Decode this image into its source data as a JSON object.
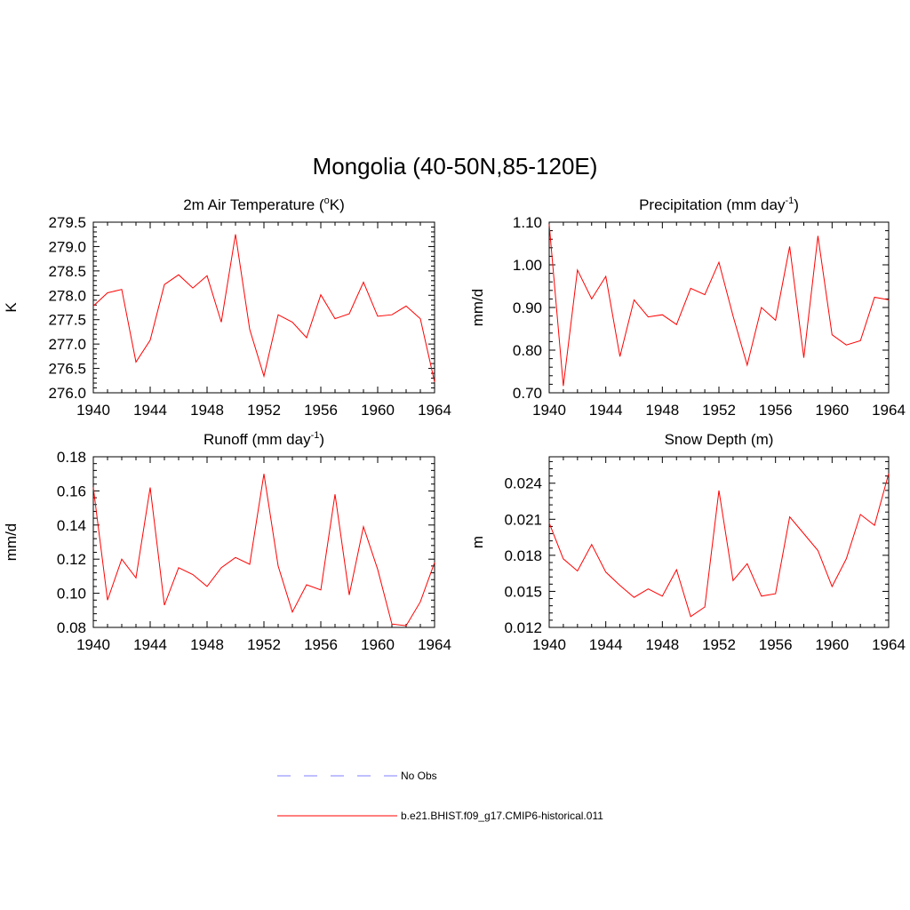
{
  "title": "Mongolia (40-50N,85-120E)",
  "colors": {
    "model": "#ff0000",
    "obs": "#9999ff",
    "axis": "#000000"
  },
  "legend": [
    {
      "label": "No Obs",
      "style": "dashed",
      "color": "#9999ff"
    },
    {
      "label": "b.e21.BHIST.f09_g17.CMIP6-historical.011",
      "style": "solid",
      "color": "#ff0000"
    }
  ],
  "chart_data": [
    {
      "type": "line",
      "title_main": "2m Air Temperature (",
      "title_sup": "o",
      "title_end": "K)",
      "ylabel": "K",
      "xlim": [
        1940,
        1964
      ],
      "ylim": [
        276.0,
        279.5
      ],
      "xticks": [
        "1940",
        "1944",
        "1948",
        "1952",
        "1956",
        "1960",
        "1964"
      ],
      "yticks": [
        "276.0",
        "276.5",
        "277.0",
        "277.5",
        "278.0",
        "278.5",
        "279.0",
        "279.5"
      ],
      "x": [
        1940,
        1941,
        1942,
        1943,
        1944,
        1945,
        1946,
        1947,
        1948,
        1949,
        1950,
        1951,
        1952,
        1953,
        1954,
        1955,
        1956,
        1957,
        1958,
        1959,
        1960,
        1961,
        1962,
        1963,
        1964
      ],
      "series": [
        {
          "name": "b.e21.BHIST.f09_g17.CMIP6-historical.011",
          "values": [
            277.78,
            278.05,
            278.12,
            276.63,
            277.08,
            278.22,
            278.42,
            278.15,
            278.4,
            277.45,
            279.25,
            277.3,
            276.34,
            277.6,
            277.45,
            277.13,
            278.01,
            277.52,
            277.62,
            278.27,
            277.57,
            277.6,
            277.78,
            277.52,
            276.22
          ]
        }
      ]
    },
    {
      "type": "line",
      "title_main": "Precipitation (mm day",
      "title_sup": "-1",
      "title_end": ")",
      "ylabel": "mm/d",
      "xlim": [
        1940,
        1964
      ],
      "ylim": [
        0.7,
        1.1
      ],
      "xticks": [
        "1940",
        "1944",
        "1948",
        "1952",
        "1956",
        "1960",
        "1964"
      ],
      "yticks": [
        "0.70",
        "0.80",
        "0.90",
        "1.00",
        "1.10"
      ],
      "x": [
        1940,
        1941,
        1942,
        1943,
        1944,
        1945,
        1946,
        1947,
        1948,
        1949,
        1950,
        1951,
        1952,
        1953,
        1954,
        1955,
        1956,
        1957,
        1958,
        1959,
        1960,
        1961,
        1962,
        1963,
        1964
      ],
      "series": [
        {
          "name": "b.e21.BHIST.f09_g17.CMIP6-historical.011",
          "values": [
            1.095,
            0.716,
            0.988,
            0.92,
            0.973,
            0.785,
            0.918,
            0.878,
            0.883,
            0.86,
            0.945,
            0.93,
            1.006,
            0.88,
            0.765,
            0.9,
            0.87,
            1.043,
            0.782,
            1.068,
            0.836,
            0.812,
            0.822,
            0.924,
            0.918
          ]
        }
      ]
    },
    {
      "type": "line",
      "title_main": "Runoff (mm day",
      "title_sup": "-1",
      "title_end": ")",
      "ylabel": "mm/d",
      "xlim": [
        1940,
        1964
      ],
      "ylim": [
        0.08,
        0.18
      ],
      "xticks": [
        "1940",
        "1944",
        "1948",
        "1952",
        "1956",
        "1960",
        "1964"
      ],
      "yticks": [
        "0.08",
        "0.10",
        "0.12",
        "0.14",
        "0.16",
        "0.18"
      ],
      "x": [
        1940,
        1941,
        1942,
        1943,
        1944,
        1945,
        1946,
        1947,
        1948,
        1949,
        1950,
        1951,
        1952,
        1953,
        1954,
        1955,
        1956,
        1957,
        1958,
        1959,
        1960,
        1961,
        1962,
        1963,
        1964
      ],
      "series": [
        {
          "name": "b.e21.BHIST.f09_g17.CMIP6-historical.011",
          "values": [
            0.162,
            0.096,
            0.12,
            0.109,
            0.162,
            0.093,
            0.115,
            0.111,
            0.104,
            0.115,
            0.121,
            0.117,
            0.17,
            0.116,
            0.089,
            0.105,
            0.102,
            0.158,
            0.099,
            0.139,
            0.114,
            0.082,
            0.081,
            0.095,
            0.118
          ]
        }
      ]
    },
    {
      "type": "line",
      "title_main": "Snow Depth (m)",
      "title_sup": "",
      "title_end": "",
      "ylabel": "m",
      "xlim": [
        1940,
        1964
      ],
      "ylim": [
        0.012,
        0.0262
      ],
      "xticks": [
        "1940",
        "1944",
        "1948",
        "1952",
        "1956",
        "1960",
        "1964"
      ],
      "yticks": [
        "0.012",
        "0.015",
        "0.018",
        "0.021",
        "0.024"
      ],
      "x": [
        1940,
        1941,
        1942,
        1943,
        1944,
        1945,
        1946,
        1947,
        1948,
        1949,
        1950,
        1951,
        1952,
        1953,
        1954,
        1955,
        1956,
        1957,
        1958,
        1959,
        1960,
        1961,
        1962,
        1963,
        1964
      ],
      "series": [
        {
          "name": "b.e21.BHIST.f09_g17.CMIP6-historical.011",
          "values": [
            0.0207,
            0.0177,
            0.0167,
            0.0189,
            0.0166,
            0.0155,
            0.0145,
            0.0152,
            0.0146,
            0.0168,
            0.0129,
            0.0137,
            0.0234,
            0.0159,
            0.0173,
            0.0146,
            0.0148,
            0.0212,
            0.0198,
            0.0184,
            0.0154,
            0.0177,
            0.0214,
            0.0205,
            0.0248
          ]
        }
      ]
    }
  ]
}
